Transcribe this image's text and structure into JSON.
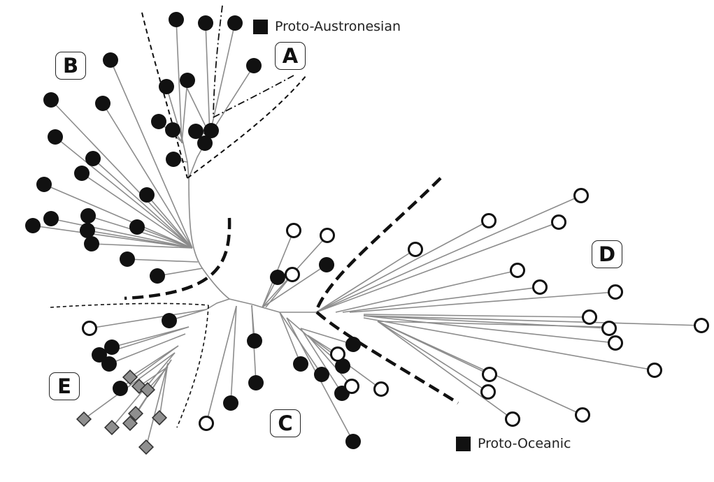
{
  "clades": {
    "A": "A",
    "B": "B",
    "C": "C",
    "D": "D",
    "E": "E"
  },
  "roots": {
    "proto_austronesian": "Proto-Austronesian",
    "proto_oceanic": "Proto-Oceanic"
  },
  "colors": {
    "branch": "#8c8c8c",
    "filled_node": "#111111",
    "open_node_fill": "#ffffff",
    "open_node_stroke": "#111111",
    "diamond_fill": "#8f8f8f",
    "boundary": "#111111"
  },
  "legend_shapes": {
    "filled": "filled-circle",
    "open": "open-circle",
    "diamond": "grey-diamond",
    "root": "black-square"
  }
}
